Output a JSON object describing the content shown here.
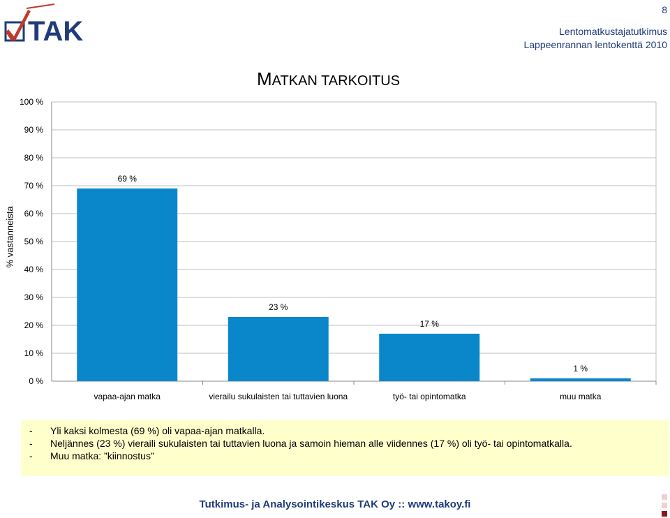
{
  "header": {
    "logo_text": "TAK",
    "page_number": "8",
    "org_line1": "Lentomatkustajatutkimus",
    "org_line2": "Lappeenrannan lentokenttä 2010"
  },
  "chart_data": {
    "type": "bar",
    "title_cap": "M",
    "title_rest": "ATKAN TARKOITUS",
    "title": "MATKAN TARKOITUS",
    "ylabel": "% vastanneista",
    "ylim": [
      0,
      100
    ],
    "yticks": [
      0,
      10,
      20,
      30,
      40,
      50,
      60,
      70,
      80,
      90,
      100
    ],
    "ytick_labels": [
      "0 %",
      "10 %",
      "20 %",
      "30 %",
      "40 %",
      "50 %",
      "60 %",
      "70 %",
      "80 %",
      "90 %",
      "100 %"
    ],
    "categories": [
      "vapaa-ajan matka",
      "vierailu sukulaisten tai tuttavien luona",
      "työ- tai opintomatka",
      "muu matka"
    ],
    "values": [
      69,
      23,
      17,
      1
    ],
    "data_labels": [
      "69 %",
      "23 %",
      "17 %",
      "1 %"
    ],
    "grid": true,
    "legend": "none",
    "bar_color": "#0a87cb"
  },
  "notes": [
    {
      "dash": "-",
      "text": "Yli kaksi kolmesta (69 %) oli vapaa-ajan matkalla."
    },
    {
      "dash": "-",
      "text": "Neljännes (23 %) vieraili sukulaisten tai tuttavien luona ja samoin hieman alle viidennes (17 %) oli työ- tai opintomatkalla."
    },
    {
      "dash": "-",
      "text": "Muu matka: ”kiinnostus”"
    }
  ],
  "footer": {
    "text": "Tutkimus- ja Analysointikeskus TAK Oy :: www.takoy.fi"
  },
  "colors": {
    "brand_blue": "#1f3c78",
    "logo_red": "#c0392b",
    "notes_bg": "#ffffcc",
    "square_light": "#f0d0d0",
    "square_dark": "#8b1a1a"
  }
}
